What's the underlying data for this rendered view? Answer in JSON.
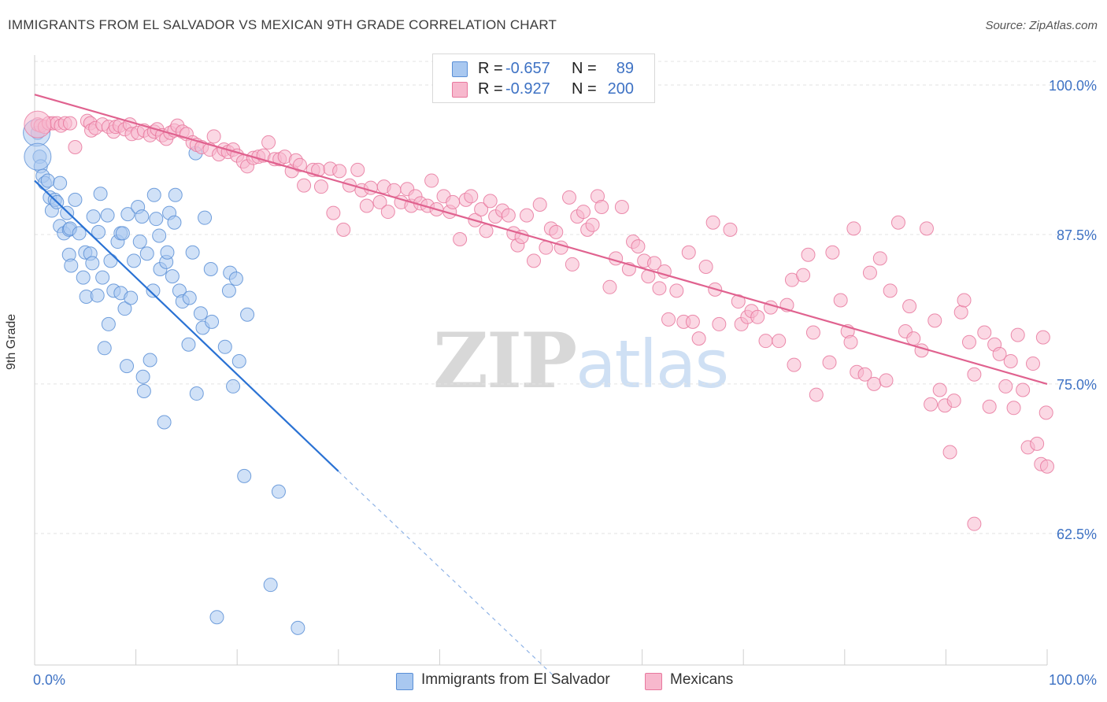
{
  "title": "IMMIGRANTS FROM EL SALVADOR VS MEXICAN 9TH GRADE CORRELATION CHART",
  "source": "Source: ZipAtlas.com",
  "watermark": {
    "zip": "ZIP",
    "atlas": "atlas"
  },
  "legend": {
    "rows": [
      {
        "r_label": "R =",
        "r_value": "-0.657",
        "n_label": "N =",
        "n_value": "89",
        "swatch": "#a9c8f0"
      },
      {
        "r_label": "R =",
        "r_value": "-0.927",
        "n_label": "N =",
        "n_value": "200",
        "swatch": "#f7b8cd"
      }
    ]
  },
  "bottom_legend": [
    {
      "label": "Immigrants from El Salvador",
      "swatch": "#a9c8f0"
    },
    {
      "label": "Mexicans",
      "swatch": "#f7b8cd"
    }
  ],
  "chart_data": {
    "type": "scatter",
    "xlabel": "",
    "ylabel": "9th Grade",
    "xlim": [
      0,
      100
    ],
    "ylim": [
      51.5,
      102.5
    ],
    "x_tick_labels": [
      "0.0%",
      "100.0%"
    ],
    "y_ticks": [
      62.5,
      75.0,
      87.5,
      100.0
    ],
    "y_tick_labels": [
      "62.5%",
      "75.0%",
      "87.5%",
      "100.0%"
    ],
    "grid": true,
    "colors": {
      "blue_fill": "#a9c8f0",
      "blue_stroke": "#5a8fd6",
      "blue_line": "#2a72d4",
      "pink_fill": "#f7b8cd",
      "pink_stroke": "#e8789e",
      "pink_line": "#e0628f",
      "tick_label": "#3e72c4"
    },
    "series": [
      {
        "name": "Immigrants from El Salvador",
        "trend": {
          "x": [
            0,
            30
          ],
          "y": [
            92.0,
            67.7
          ],
          "dashed_to": [
            52,
            50.0
          ]
        },
        "points": [
          [
            0.3,
            96.0
          ],
          [
            0.5,
            94.0
          ],
          [
            0.6,
            93.2
          ],
          [
            0.8,
            92.4
          ],
          [
            1.0,
            91.8
          ],
          [
            1.3,
            92.0
          ],
          [
            1.5,
            90.6
          ],
          [
            1.7,
            89.5
          ],
          [
            2.0,
            90.4
          ],
          [
            2.2,
            90.2
          ],
          [
            2.5,
            91.8
          ],
          [
            2.5,
            88.2
          ],
          [
            2.9,
            87.6
          ],
          [
            3.2,
            89.3
          ],
          [
            3.4,
            87.9
          ],
          [
            3.4,
            85.8
          ],
          [
            3.5,
            88.0
          ],
          [
            3.6,
            84.9
          ],
          [
            4.0,
            90.4
          ],
          [
            4.4,
            87.6
          ],
          [
            4.8,
            83.9
          ],
          [
            5.0,
            86.0
          ],
          [
            5.1,
            82.3
          ],
          [
            5.5,
            85.9
          ],
          [
            5.7,
            85.1
          ],
          [
            5.8,
            89.0
          ],
          [
            6.2,
            82.4
          ],
          [
            6.3,
            87.7
          ],
          [
            6.5,
            90.9
          ],
          [
            6.7,
            83.9
          ],
          [
            6.9,
            78.0
          ],
          [
            7.2,
            89.1
          ],
          [
            7.3,
            80.0
          ],
          [
            7.5,
            85.3
          ],
          [
            7.8,
            82.8
          ],
          [
            8.2,
            86.9
          ],
          [
            8.5,
            82.6
          ],
          [
            8.5,
            87.6
          ],
          [
            8.7,
            87.6
          ],
          [
            8.9,
            81.3
          ],
          [
            9.1,
            76.5
          ],
          [
            9.2,
            89.2
          ],
          [
            9.5,
            82.2
          ],
          [
            9.8,
            85.3
          ],
          [
            10.2,
            89.8
          ],
          [
            10.4,
            86.9
          ],
          [
            10.6,
            89.0
          ],
          [
            10.7,
            75.6
          ],
          [
            10.8,
            74.4
          ],
          [
            11.1,
            85.9
          ],
          [
            11.4,
            77.0
          ],
          [
            11.7,
            82.8
          ],
          [
            11.8,
            90.8
          ],
          [
            12.0,
            88.8
          ],
          [
            12.3,
            87.4
          ],
          [
            12.4,
            84.6
          ],
          [
            12.8,
            71.8
          ],
          [
            13.0,
            85.2
          ],
          [
            13.1,
            86.0
          ],
          [
            13.3,
            89.3
          ],
          [
            13.6,
            84.0
          ],
          [
            13.8,
            88.5
          ],
          [
            13.9,
            90.8
          ],
          [
            14.3,
            82.8
          ],
          [
            14.6,
            81.9
          ],
          [
            15.2,
            78.3
          ],
          [
            15.3,
            82.2
          ],
          [
            15.6,
            86.0
          ],
          [
            15.9,
            94.3
          ],
          [
            16.0,
            74.2
          ],
          [
            16.4,
            80.9
          ],
          [
            16.6,
            79.7
          ],
          [
            16.8,
            88.9
          ],
          [
            17.4,
            84.6
          ],
          [
            17.5,
            80.2
          ],
          [
            18.0,
            55.5
          ],
          [
            18.8,
            78.1
          ],
          [
            19.2,
            82.8
          ],
          [
            19.3,
            84.3
          ],
          [
            19.6,
            74.8
          ],
          [
            19.9,
            83.8
          ],
          [
            20.2,
            76.9
          ],
          [
            20.7,
            67.3
          ],
          [
            21.0,
            80.8
          ],
          [
            23.3,
            58.2
          ],
          [
            24.1,
            66.0
          ],
          [
            26.0,
            54.6
          ]
        ],
        "big_points": [
          [
            0.2,
            96.0
          ],
          [
            0.3,
            94.0
          ]
        ]
      },
      {
        "name": "Mexicans",
        "trend": {
          "x": [
            0,
            100
          ],
          "y": [
            99.2,
            75.0
          ]
        },
        "points": [
          [
            0.3,
            96.7
          ],
          [
            0.6,
            96.6
          ],
          [
            1.0,
            96.5
          ],
          [
            1.4,
            96.8
          ],
          [
            1.8,
            96.8
          ],
          [
            2.2,
            96.8
          ],
          [
            2.6,
            96.6
          ],
          [
            3.0,
            96.8
          ],
          [
            3.5,
            96.8
          ],
          [
            4.0,
            94.8
          ],
          [
            5.2,
            97.0
          ],
          [
            5.5,
            96.8
          ],
          [
            5.6,
            96.2
          ],
          [
            6.0,
            96.4
          ],
          [
            6.7,
            96.7
          ],
          [
            7.3,
            96.5
          ],
          [
            7.8,
            96.1
          ],
          [
            8.0,
            96.5
          ],
          [
            8.4,
            96.6
          ],
          [
            8.9,
            96.3
          ],
          [
            9.4,
            96.7
          ],
          [
            9.6,
            95.9
          ],
          [
            10.2,
            96.0
          ],
          [
            10.8,
            96.2
          ],
          [
            11.4,
            95.8
          ],
          [
            11.8,
            96.1
          ],
          [
            12.1,
            96.3
          ],
          [
            12.6,
            95.8
          ],
          [
            13.0,
            95.5
          ],
          [
            13.4,
            96.0
          ],
          [
            13.8,
            96.2
          ],
          [
            14.1,
            96.6
          ],
          [
            14.6,
            96.1
          ],
          [
            15.0,
            95.9
          ],
          [
            15.6,
            95.2
          ],
          [
            16.0,
            95.0
          ],
          [
            16.5,
            94.8
          ],
          [
            17.3,
            94.6
          ],
          [
            17.7,
            95.7
          ],
          [
            18.2,
            94.2
          ],
          [
            18.7,
            94.6
          ],
          [
            19.1,
            94.4
          ],
          [
            19.6,
            94.6
          ],
          [
            20.0,
            94.1
          ],
          [
            20.6,
            93.6
          ],
          [
            21.0,
            93.2
          ],
          [
            21.6,
            93.9
          ],
          [
            22.1,
            94.0
          ],
          [
            22.6,
            94.1
          ],
          [
            23.1,
            95.2
          ],
          [
            23.7,
            93.8
          ],
          [
            24.2,
            93.8
          ],
          [
            24.7,
            94.0
          ],
          [
            25.4,
            92.8
          ],
          [
            25.8,
            93.7
          ],
          [
            26.2,
            93.3
          ],
          [
            26.6,
            91.6
          ],
          [
            27.5,
            92.9
          ],
          [
            28.0,
            92.9
          ],
          [
            28.3,
            91.5
          ],
          [
            29.2,
            93.0
          ],
          [
            29.5,
            89.3
          ],
          [
            30.1,
            92.8
          ],
          [
            30.5,
            87.9
          ],
          [
            31.1,
            91.6
          ],
          [
            31.9,
            92.9
          ],
          [
            32.3,
            91.2
          ],
          [
            32.8,
            89.9
          ],
          [
            33.2,
            91.4
          ],
          [
            34.1,
            90.2
          ],
          [
            34.5,
            91.5
          ],
          [
            34.9,
            89.4
          ],
          [
            35.5,
            91.2
          ],
          [
            36.2,
            90.2
          ],
          [
            36.8,
            91.3
          ],
          [
            37.2,
            89.9
          ],
          [
            37.6,
            90.7
          ],
          [
            38.1,
            90.1
          ],
          [
            38.8,
            89.9
          ],
          [
            39.2,
            92.0
          ],
          [
            39.7,
            89.6
          ],
          [
            40.4,
            90.7
          ],
          [
            41.0,
            89.4
          ],
          [
            41.3,
            90.2
          ],
          [
            42.0,
            87.1
          ],
          [
            42.6,
            90.4
          ],
          [
            43.1,
            90.7
          ],
          [
            43.5,
            88.7
          ],
          [
            44.1,
            89.6
          ],
          [
            44.6,
            87.8
          ],
          [
            45.0,
            90.3
          ],
          [
            45.5,
            89.0
          ],
          [
            46.2,
            89.5
          ],
          [
            46.8,
            89.1
          ],
          [
            47.3,
            87.6
          ],
          [
            47.7,
            86.6
          ],
          [
            48.1,
            87.3
          ],
          [
            48.6,
            89.1
          ],
          [
            49.3,
            85.3
          ],
          [
            49.9,
            90.0
          ],
          [
            50.5,
            86.4
          ],
          [
            51.0,
            88.0
          ],
          [
            51.5,
            87.7
          ],
          [
            52.0,
            86.4
          ],
          [
            52.8,
            90.6
          ],
          [
            53.1,
            85.0
          ],
          [
            53.6,
            89.0
          ],
          [
            54.2,
            89.4
          ],
          [
            54.6,
            87.9
          ],
          [
            55.1,
            88.3
          ],
          [
            55.6,
            90.7
          ],
          [
            56.0,
            89.8
          ],
          [
            56.8,
            83.1
          ],
          [
            57.4,
            85.5
          ],
          [
            58.0,
            89.8
          ],
          [
            58.7,
            84.6
          ],
          [
            59.1,
            86.9
          ],
          [
            59.6,
            86.5
          ],
          [
            60.2,
            85.3
          ],
          [
            60.6,
            84.0
          ],
          [
            61.2,
            85.1
          ],
          [
            61.7,
            83.0
          ],
          [
            62.2,
            84.4
          ],
          [
            62.6,
            80.4
          ],
          [
            63.4,
            82.8
          ],
          [
            64.1,
            80.2
          ],
          [
            64.6,
            86.0
          ],
          [
            65.0,
            80.2
          ],
          [
            65.6,
            78.8
          ],
          [
            66.3,
            84.8
          ],
          [
            67.0,
            88.5
          ],
          [
            67.2,
            82.9
          ],
          [
            67.6,
            80.0
          ],
          [
            68.7,
            87.9
          ],
          [
            69.5,
            81.9
          ],
          [
            69.8,
            80.0
          ],
          [
            70.4,
            80.6
          ],
          [
            70.8,
            81.1
          ],
          [
            71.4,
            80.6
          ],
          [
            72.2,
            78.6
          ],
          [
            72.7,
            81.4
          ],
          [
            73.5,
            78.6
          ],
          [
            74.3,
            81.6
          ],
          [
            74.8,
            83.7
          ],
          [
            75.0,
            76.6
          ],
          [
            75.9,
            84.1
          ],
          [
            76.4,
            85.8
          ],
          [
            76.9,
            79.3
          ],
          [
            77.2,
            74.1
          ],
          [
            78.5,
            76.8
          ],
          [
            78.8,
            86.0
          ],
          [
            79.6,
            82.0
          ],
          [
            80.3,
            79.4
          ],
          [
            80.6,
            78.5
          ],
          [
            80.9,
            88.0
          ],
          [
            81.2,
            76.0
          ],
          [
            82.0,
            75.8
          ],
          [
            82.5,
            84.3
          ],
          [
            82.9,
            75.0
          ],
          [
            83.5,
            85.5
          ],
          [
            84.1,
            75.3
          ],
          [
            84.5,
            82.8
          ],
          [
            85.3,
            88.5
          ],
          [
            86.0,
            79.4
          ],
          [
            86.4,
            81.5
          ],
          [
            86.8,
            78.8
          ],
          [
            87.6,
            77.8
          ],
          [
            88.1,
            88.0
          ],
          [
            88.5,
            73.3
          ],
          [
            88.9,
            80.3
          ],
          [
            89.4,
            74.5
          ],
          [
            89.9,
            73.2
          ],
          [
            90.4,
            69.3
          ],
          [
            90.8,
            73.6
          ],
          [
            91.5,
            81.0
          ],
          [
            91.8,
            82.0
          ],
          [
            92.3,
            78.5
          ],
          [
            92.8,
            75.8
          ],
          [
            93.8,
            79.3
          ],
          [
            94.3,
            73.1
          ],
          [
            94.8,
            78.3
          ],
          [
            95.3,
            77.5
          ],
          [
            95.9,
            74.8
          ],
          [
            96.4,
            76.9
          ],
          [
            96.7,
            73.0
          ],
          [
            97.1,
            79.1
          ],
          [
            97.6,
            74.5
          ],
          [
            98.1,
            69.7
          ],
          [
            98.6,
            76.7
          ],
          [
            99.0,
            70.0
          ],
          [
            99.4,
            68.3
          ],
          [
            99.6,
            78.9
          ],
          [
            99.9,
            72.6
          ],
          [
            100.0,
            68.1
          ],
          [
            92.8,
            63.3
          ]
        ],
        "big_points": [
          [
            0.3,
            96.7
          ]
        ]
      }
    ]
  }
}
